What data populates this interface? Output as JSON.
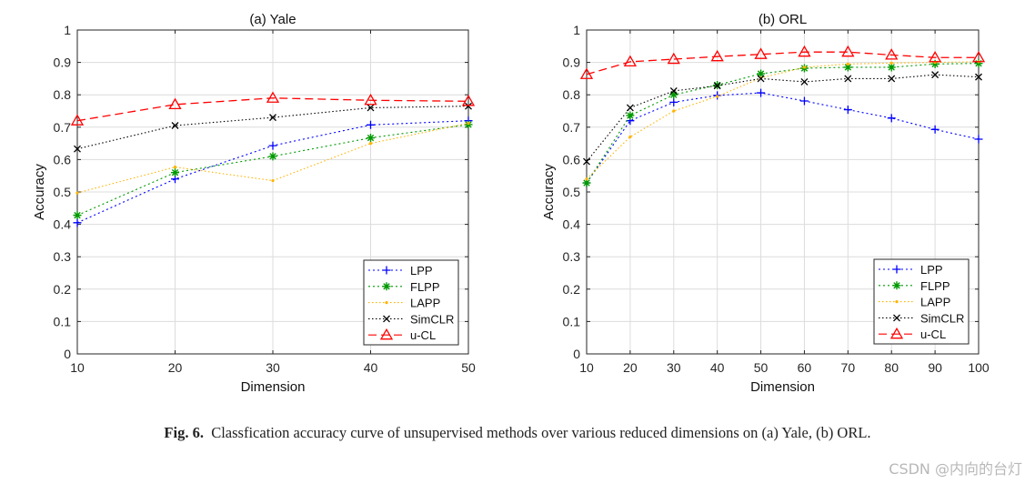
{
  "chart_data": [
    {
      "type": "line",
      "title": "(a) Yale",
      "xlabel": "Dimension",
      "ylabel": "Accuracy",
      "x": [
        10,
        20,
        30,
        40,
        50
      ],
      "xlim": [
        10,
        50
      ],
      "ylim": [
        0,
        1
      ],
      "xticks": [
        "10",
        "20",
        "30",
        "40",
        "50"
      ],
      "yticks": [
        "0",
        "0.1",
        "0.2",
        "0.3",
        "0.4",
        "0.5",
        "0.6",
        "0.7",
        "0.8",
        "0.9",
        "1"
      ],
      "grid": true,
      "legend_position": "bottom-right",
      "series": [
        {
          "name": "LPP",
          "color": "#0000ff",
          "marker": "plus",
          "values": [
            0.405,
            0.54,
            0.643,
            0.707,
            0.72
          ]
        },
        {
          "name": "FLPP",
          "color": "#009900",
          "marker": "star",
          "values": [
            0.428,
            0.56,
            0.61,
            0.667,
            0.708
          ]
        },
        {
          "name": "LAPP",
          "color": "#ffb300",
          "marker": "dot",
          "values": [
            0.497,
            0.577,
            0.535,
            0.65,
            0.712
          ]
        },
        {
          "name": "SimCLR",
          "color": "#000000",
          "marker": "x",
          "values": [
            0.633,
            0.705,
            0.73,
            0.76,
            0.765
          ]
        },
        {
          "name": "u-CL",
          "color": "#ff0000",
          "marker": "triangle",
          "values": [
            0.72,
            0.77,
            0.79,
            0.783,
            0.78
          ]
        }
      ]
    },
    {
      "type": "line",
      "title": "(b) ORL",
      "xlabel": "Dimension",
      "ylabel": "Accuracy",
      "x": [
        10,
        20,
        30,
        40,
        50,
        60,
        70,
        80,
        90,
        100
      ],
      "xlim": [
        10,
        100
      ],
      "ylim": [
        0,
        1
      ],
      "xticks": [
        "10",
        "20",
        "30",
        "40",
        "50",
        "60",
        "70",
        "80",
        "90",
        "100"
      ],
      "yticks": [
        "0",
        "0.1",
        "0.2",
        "0.3",
        "0.4",
        "0.5",
        "0.6",
        "0.7",
        "0.8",
        "0.9",
        "1"
      ],
      "grid": true,
      "legend_position": "bottom-right",
      "series": [
        {
          "name": "LPP",
          "color": "#0000ff",
          "marker": "plus",
          "values": [
            0.528,
            0.72,
            0.777,
            0.798,
            0.806,
            0.781,
            0.754,
            0.728,
            0.693,
            0.663
          ]
        },
        {
          "name": "FLPP",
          "color": "#009900",
          "marker": "star",
          "values": [
            0.528,
            0.736,
            0.8,
            0.83,
            0.865,
            0.882,
            0.885,
            0.885,
            0.895,
            0.897
          ]
        },
        {
          "name": "LAPP",
          "color": "#ffb300",
          "marker": "dot",
          "values": [
            0.54,
            0.67,
            0.75,
            0.795,
            0.852,
            0.885,
            0.895,
            0.898,
            0.9,
            0.902
          ]
        },
        {
          "name": "SimCLR",
          "color": "#000000",
          "marker": "x",
          "values": [
            0.594,
            0.76,
            0.812,
            0.828,
            0.85,
            0.84,
            0.85,
            0.85,
            0.862,
            0.855
          ]
        },
        {
          "name": "u-CL",
          "color": "#ff0000",
          "marker": "triangle",
          "values": [
            0.863,
            0.902,
            0.91,
            0.918,
            0.925,
            0.932,
            0.932,
            0.923,
            0.915,
            0.915
          ]
        }
      ]
    }
  ],
  "caption": {
    "label": "Fig. 6.",
    "text": "Classfication accuracy curve of unsupervised methods over various reduced dimensions on (a) Yale, (b) ORL."
  },
  "watermark": "CSDN @内向的台灯"
}
